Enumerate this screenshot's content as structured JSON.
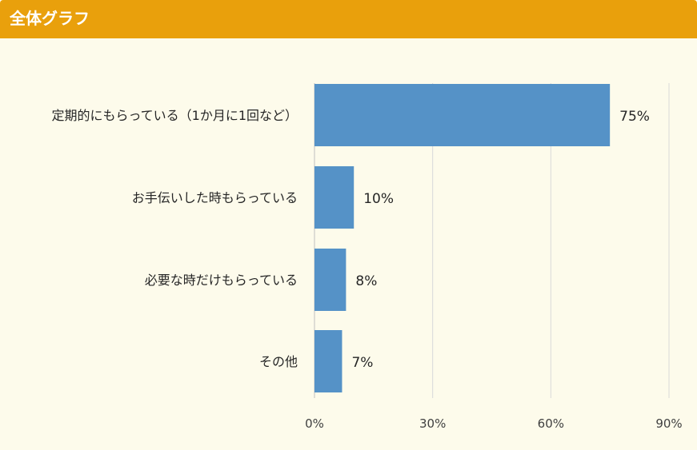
{
  "header": {
    "title": "全体グラフ"
  },
  "chart_data": {
    "type": "bar",
    "orientation": "horizontal",
    "categories": [
      "定期的にもらっている（1か月に1回など）",
      "お手伝いした時もらっている",
      "必要な時だけもらっている",
      "その他"
    ],
    "values": [
      75,
      10,
      8,
      7
    ],
    "value_labels": [
      "75%",
      "10%",
      "8%",
      "7%"
    ],
    "xlim": [
      0,
      90
    ],
    "xticks": [
      0,
      30,
      60,
      90
    ],
    "xtick_labels": [
      "0%",
      "30%",
      "60%",
      "90%"
    ],
    "grid": true,
    "colors": {
      "bar": "#5592c7",
      "grid": "#d9d9d9",
      "header": "#e9a00c",
      "background": "#fdfbeb"
    }
  }
}
